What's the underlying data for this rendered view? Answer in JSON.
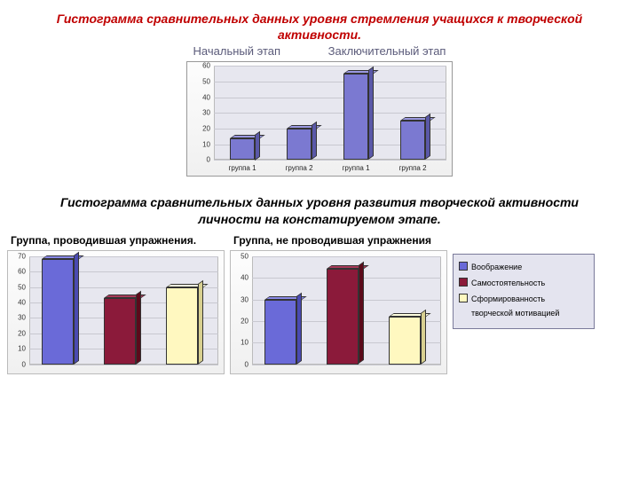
{
  "title1": "Гистограмма сравнительных данных уровня стремления учащихся к творческой активности.",
  "stage_labels": {
    "initial": "Начальный этап",
    "final": "Заключительный этап"
  },
  "top_chart": {
    "type": "bar-3d",
    "ylim": [
      0,
      60
    ],
    "ytick_step": 10,
    "y_ticks": [
      0,
      10,
      20,
      30,
      40,
      50,
      60
    ],
    "categories": [
      "группа 1",
      "группа 2",
      "группа 1",
      "группа 2"
    ],
    "values": [
      14,
      20,
      55,
      25
    ],
    "bar_fill": "#7b79d1",
    "bar_top": "#9a98e0",
    "bar_side": "#5a58a8",
    "bg": "#e7e7ef",
    "grid_color": "#c8c8d0",
    "label_fontsize": 8
  },
  "title2": "Гистограмма сравнительных данных уровня развития творческой активности личности на констатируемом этапе.",
  "bottom_left": {
    "title": "Группа, проводившая упражнения.",
    "type": "bar-3d",
    "ylim": [
      0,
      70
    ],
    "ytick_step": 10,
    "y_ticks": [
      0,
      10,
      20,
      30,
      40,
      50,
      60,
      70
    ],
    "values": [
      68,
      43,
      50
    ],
    "colors": [
      "#6a6ad8",
      "#8b1a3a",
      "#fff8c0"
    ],
    "tops": [
      "#8a8ae8",
      "#a83a5a",
      "#ffffe0"
    ],
    "sides": [
      "#4a4ab0",
      "#5b0a1a",
      "#d8d090"
    ],
    "bg": "#e7e7ef"
  },
  "bottom_right": {
    "title": "Группа, не проводившая упражнения",
    "type": "bar-3d",
    "ylim": [
      0,
      50
    ],
    "ytick_step": 10,
    "y_ticks": [
      0,
      10,
      20,
      30,
      40,
      50
    ],
    "values": [
      30,
      44,
      22
    ],
    "colors": [
      "#6a6ad8",
      "#8b1a3a",
      "#fff8c0"
    ],
    "tops": [
      "#8a8ae8",
      "#a83a5a",
      "#ffffe0"
    ],
    "sides": [
      "#4a4ab0",
      "#5b0a1a",
      "#d8d090"
    ],
    "bg": "#e7e7ef"
  },
  "legend": {
    "items": [
      {
        "label": "Воображение",
        "color": "#6a6ad8"
      },
      {
        "label": "Самостоятельность",
        "color": "#8b1a3a"
      },
      {
        "label": "Сформированность творческой мотивацией",
        "color": "#fff8c0"
      }
    ]
  }
}
